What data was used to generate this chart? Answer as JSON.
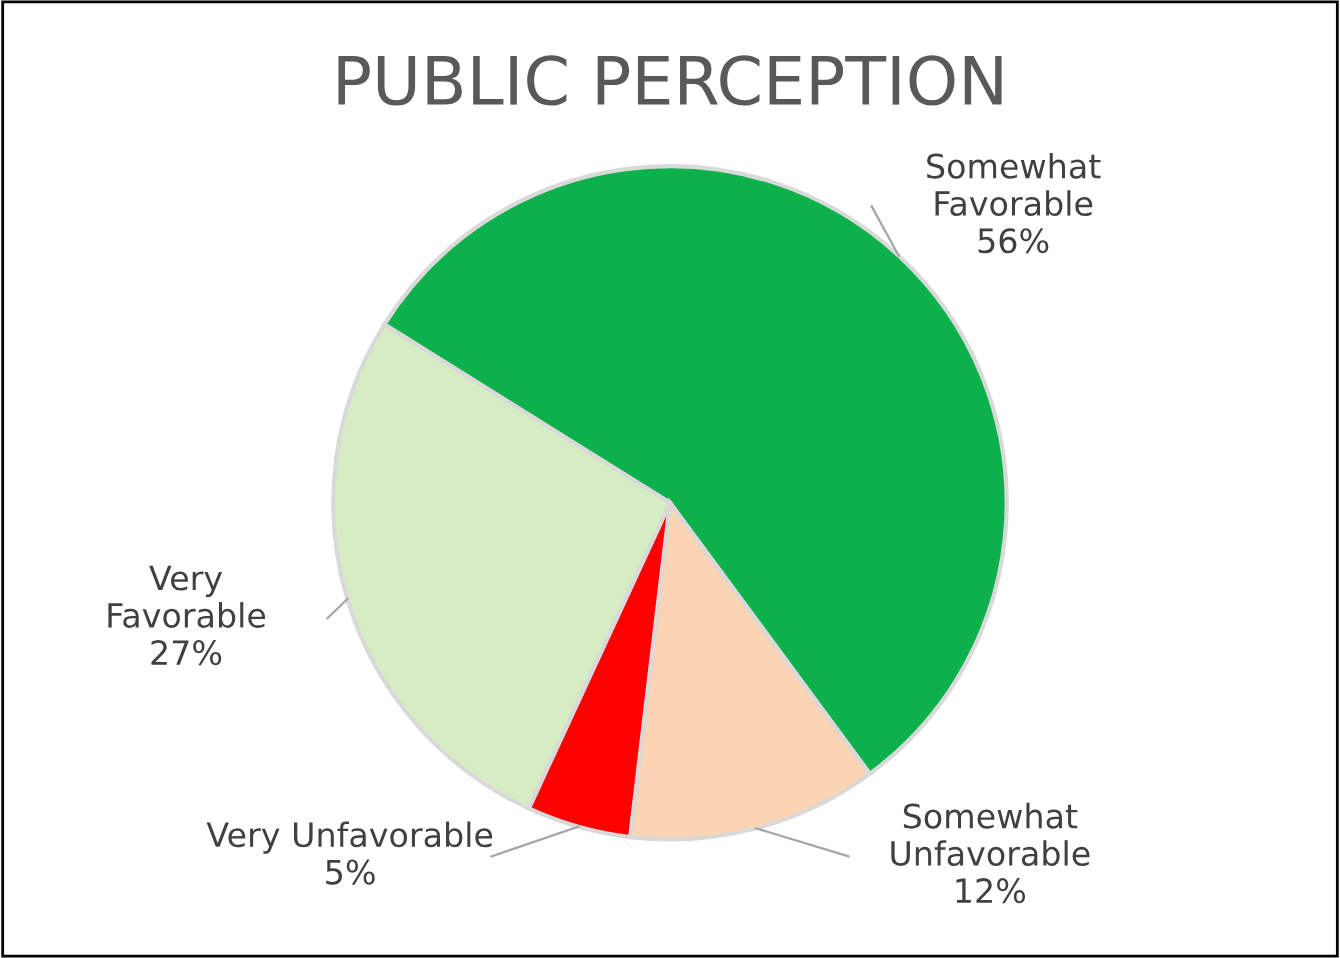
{
  "chart_data": {
    "type": "pie",
    "title": "PUBLIC PERCEPTION",
    "categories": [
      "Somewhat\nFavorable",
      "Somewhat\nUnfavorable",
      "Very Unfavorable",
      "Very\nFavorable"
    ],
    "values": [
      56,
      12,
      5,
      27
    ],
    "value_labels": [
      "56%",
      "12%",
      "5%",
      "27%"
    ],
    "colors": [
      "#0db14b",
      "#fbd4b4",
      "#ff0000",
      "#d6edc4"
    ],
    "legend": false
  }
}
